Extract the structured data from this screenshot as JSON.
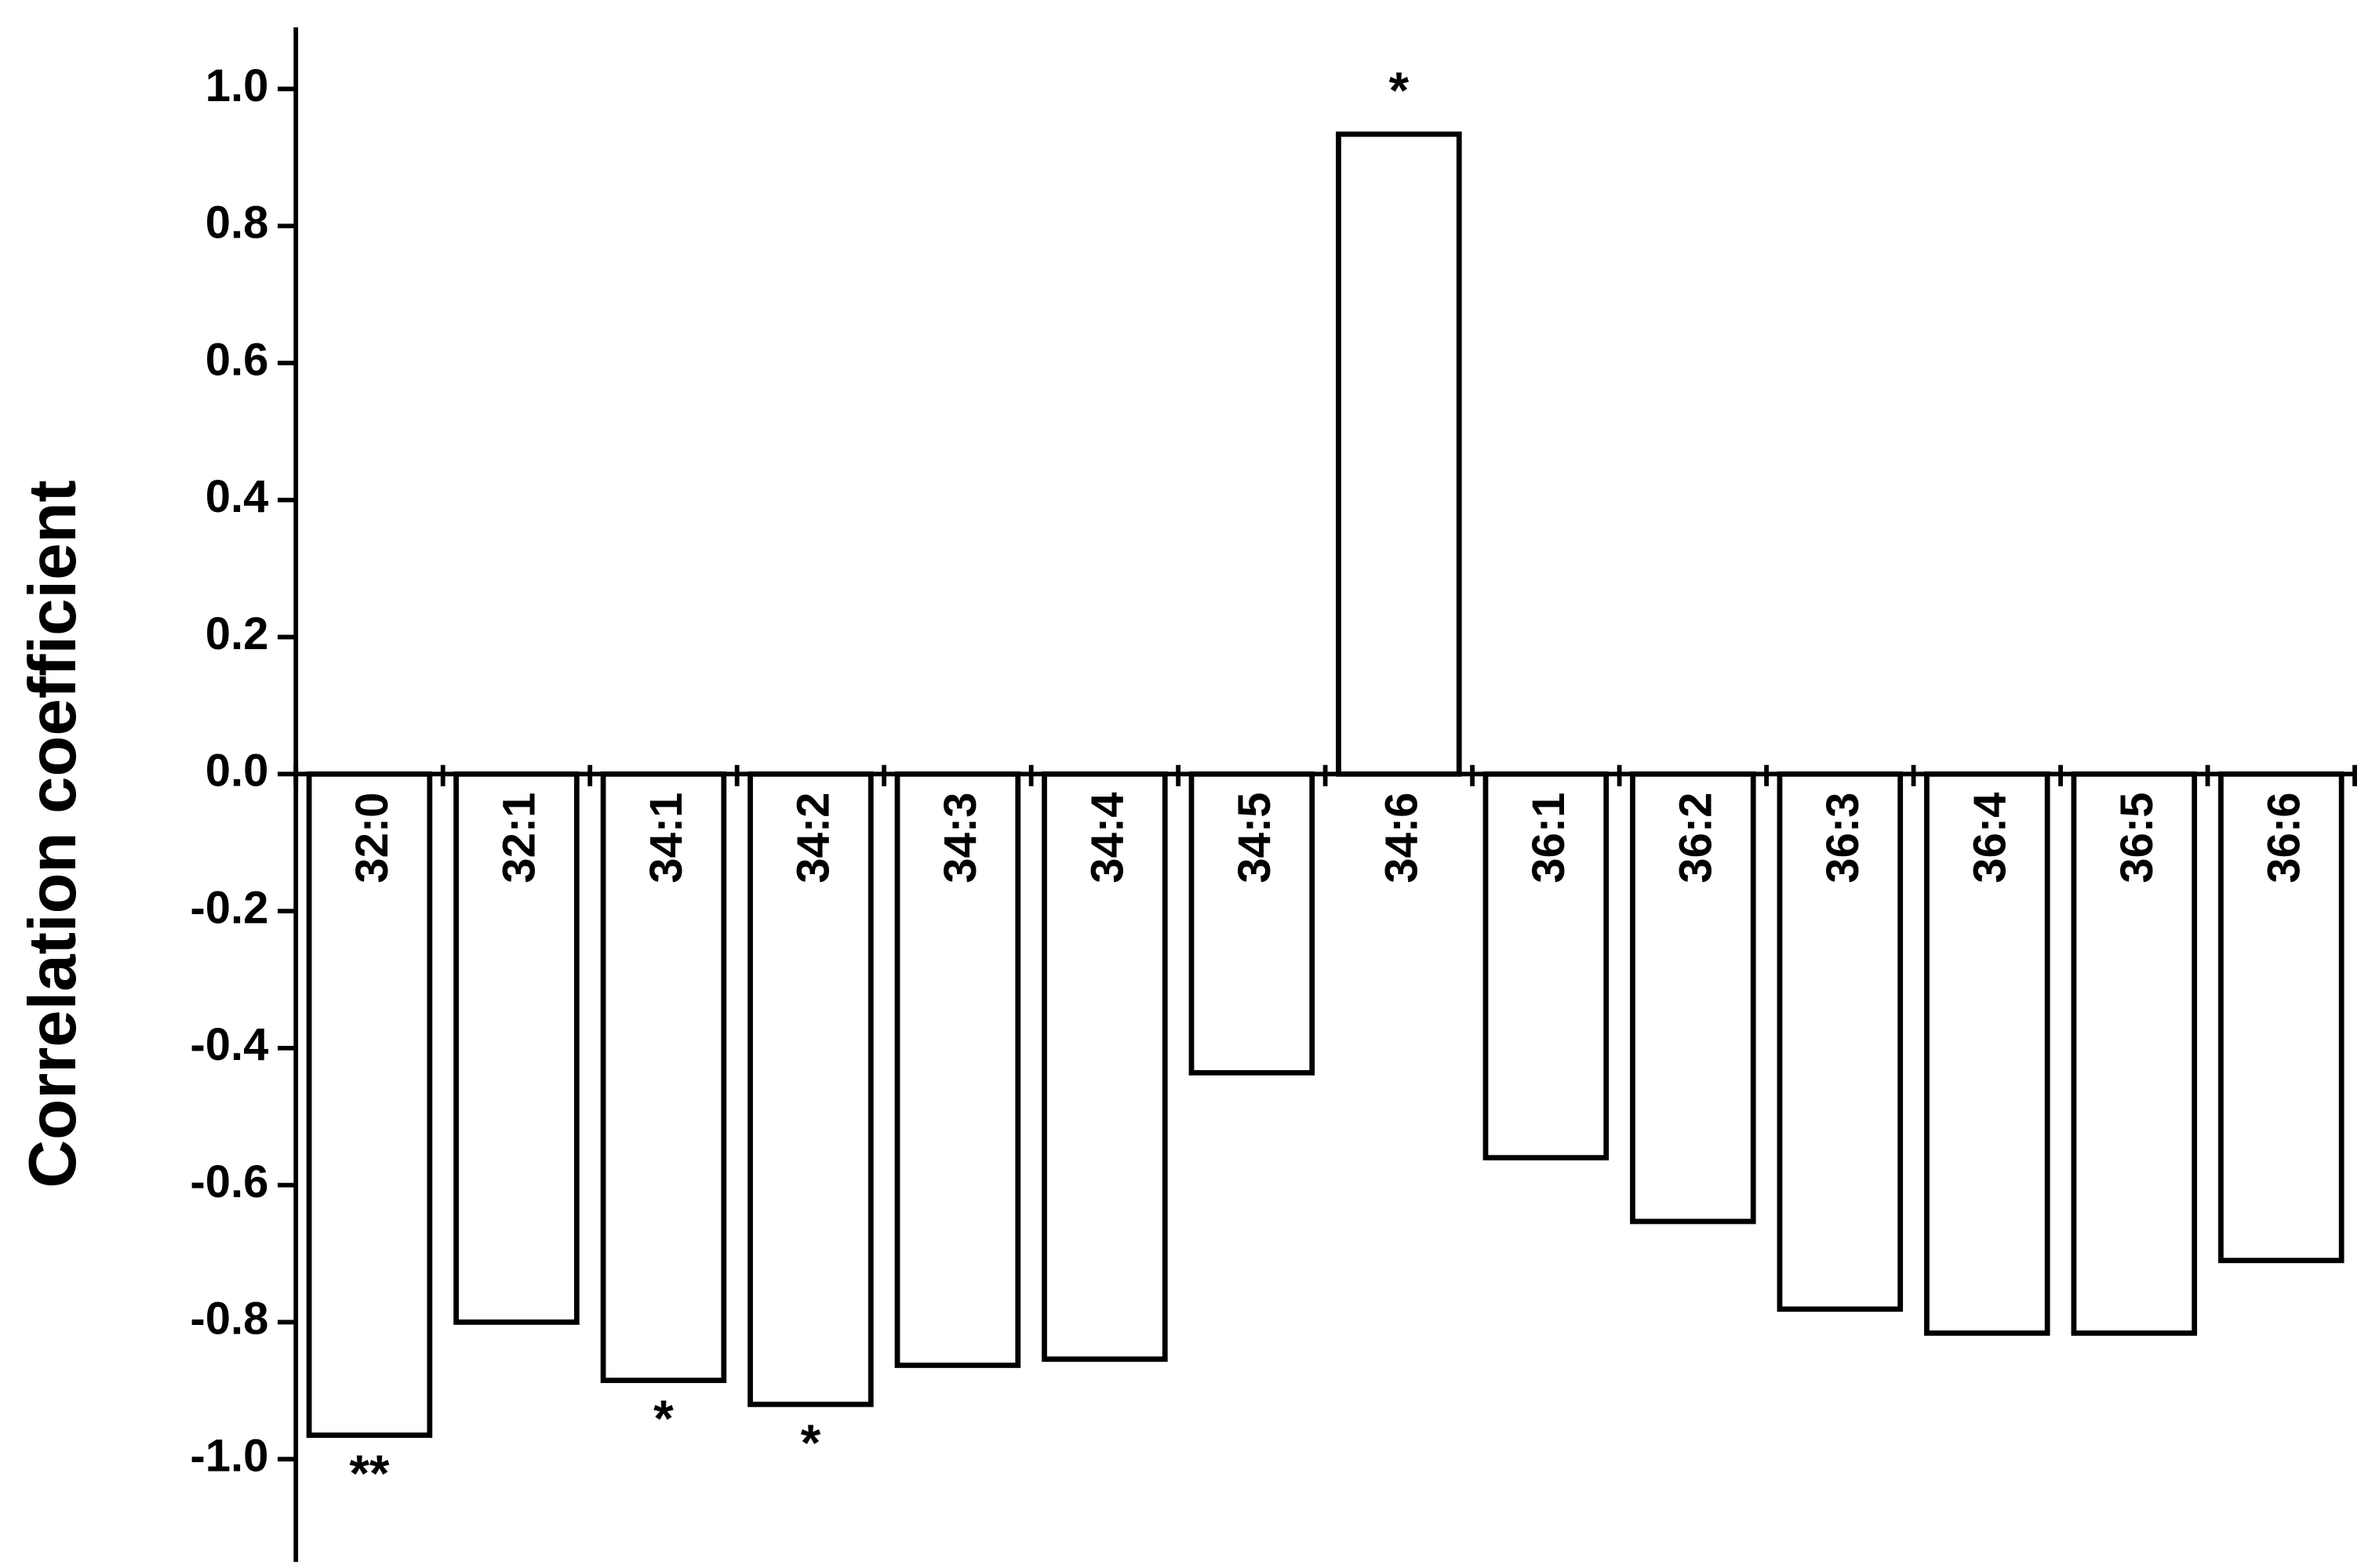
{
  "chart_data": {
    "type": "bar",
    "y_label": "Correlation coefficient",
    "categories": [
      "32:0",
      "32:1",
      "34:1",
      "34:2",
      "34:3",
      "34:4",
      "34:5",
      "34:6",
      "36:1",
      "36:2",
      "36:3",
      "36:4",
      "36:5",
      "36:6"
    ],
    "values": [
      -0.965,
      -0.8,
      -0.885,
      -0.92,
      -0.863,
      -0.854,
      -0.436,
      0.934,
      -0.56,
      -0.653,
      -0.781,
      -0.816,
      -0.816,
      -0.71
    ],
    "annotations": [
      "**",
      null,
      "*",
      "*",
      null,
      null,
      null,
      "*",
      null,
      null,
      null,
      null,
      null,
      null
    ],
    "color": "#ffffff",
    "edge_color": "#000000",
    "ylim": [
      -1.15,
      1.09
    ],
    "yticks": [
      {
        "value": -1.0,
        "label": "-1.0"
      },
      -0.8,
      -0.6,
      -0.4,
      -0.2,
      {
        "value": 0.0,
        "label": "0.0"
      },
      0.2,
      0.4,
      0.6,
      0.8,
      {
        "value": 1.0,
        "label": "1.0"
      }
    ],
    "grid": false
  }
}
